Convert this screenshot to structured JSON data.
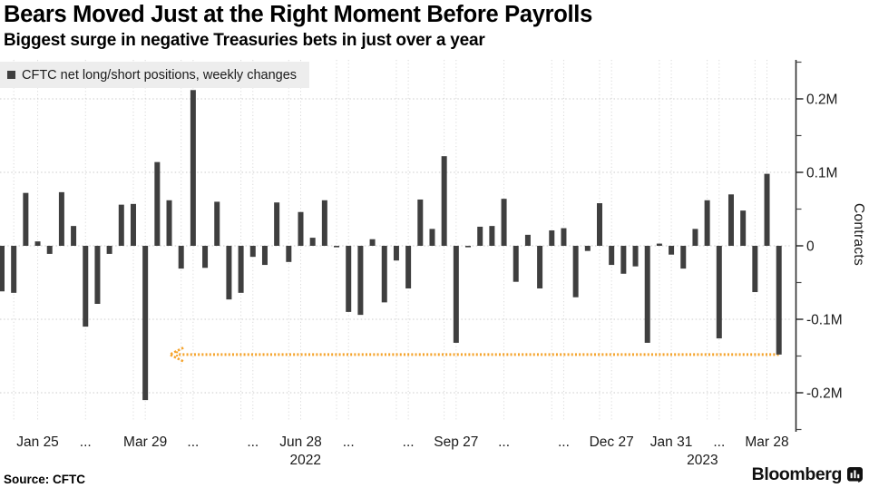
{
  "header": {
    "title": "Bears Moved Just at the Right Moment Before Payrolls",
    "subtitle": "Biggest surge in negative Treasuries bets in just over a year"
  },
  "legend": {
    "label": "CFTC net long/short positions, weekly changes",
    "swatch_color": "#3f3f3f"
  },
  "footer": {
    "source": "Source: CFTC",
    "brand": "Bloomberg"
  },
  "chart_data": {
    "type": "bar",
    "series_name": "CFTC net long/short positions, weekly changes",
    "ylabel": "Contracts",
    "unit": "millions of contracts",
    "ylim": [
      -0.26,
      0.26
    ],
    "grid": true,
    "bar_color": "#3f3f3f",
    "highlight_color": "#F5A42C",
    "values_millions": [
      -0.062,
      -0.064,
      0.072,
      0.006,
      -0.011,
      0.073,
      0.027,
      -0.11,
      -0.079,
      -0.011,
      0.056,
      0.057,
      -0.21,
      0.114,
      0.062,
      -0.031,
      0.212,
      -0.03,
      0.06,
      -0.073,
      -0.064,
      -0.015,
      -0.026,
      0.059,
      -0.022,
      0.046,
      0.011,
      0.062,
      -0.002,
      -0.09,
      -0.094,
      0.009,
      -0.077,
      -0.02,
      -0.058,
      0.063,
      0.023,
      0.122,
      -0.132,
      -0.002,
      0.026,
      0.027,
      0.064,
      -0.049,
      0.015,
      -0.058,
      0.021,
      0.024,
      -0.07,
      -0.007,
      0.058,
      -0.026,
      -0.038,
      -0.028,
      -0.132,
      0.003,
      -0.012,
      -0.031,
      0.023,
      0.062,
      -0.126,
      0.07,
      0.048,
      -0.063,
      0.098,
      -0.148
    ],
    "x_ticks": [
      {
        "index": 3,
        "label": "Jan 25"
      },
      {
        "index": 7,
        "label": "..."
      },
      {
        "index": 12,
        "label": "Mar 29"
      },
      {
        "index": 16,
        "label": "..."
      },
      {
        "index": 21,
        "label": "..."
      },
      {
        "index": 25,
        "label": "Jun 28"
      },
      {
        "index": 29,
        "label": "..."
      },
      {
        "index": 34,
        "label": "..."
      },
      {
        "index": 38,
        "label": "Sep 27"
      },
      {
        "index": 42,
        "label": "..."
      },
      {
        "index": 47,
        "label": "..."
      },
      {
        "index": 51,
        "label": "Dec 27"
      },
      {
        "index": 56,
        "label": "Jan 31"
      },
      {
        "index": 60,
        "label": "..."
      },
      {
        "index": 64,
        "label": "Mar 28"
      }
    ],
    "year_labels": [
      {
        "label": "2022",
        "index": 25.4
      },
      {
        "label": "2023",
        "index": 58.6
      }
    ],
    "y_ticks_major": [
      {
        "value": 0.2,
        "label": "0.2M"
      },
      {
        "value": 0.1,
        "label": "0.1M"
      },
      {
        "value": 0,
        "label": "0"
      },
      {
        "value": -0.1,
        "label": "-0.1M"
      },
      {
        "value": -0.2,
        "label": "-0.2M"
      }
    ],
    "y_ticks_minor": [
      0.25,
      0.15,
      0.05,
      -0.05,
      -0.15,
      -0.25
    ],
    "annotation_arrow": {
      "y_value": -0.148,
      "from_index": 65,
      "to_index": 14.2,
      "direction": "left",
      "color": "#F5A42C",
      "style": "dotted"
    },
    "x_gridline_indices": [
      1,
      3,
      7,
      11,
      12,
      15,
      16,
      20,
      21,
      24,
      25,
      28,
      29,
      33,
      34,
      37,
      38,
      42,
      46,
      47,
      50,
      51,
      55,
      56,
      59,
      60,
      63,
      64
    ],
    "legend_position": "top-left"
  }
}
